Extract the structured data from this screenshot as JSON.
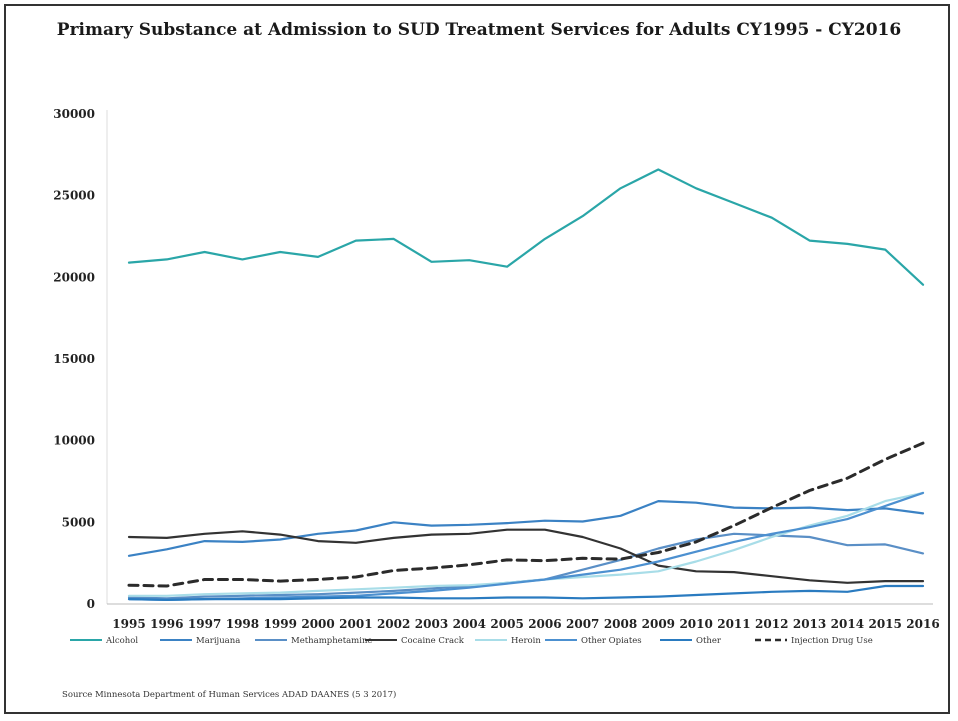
{
  "chart_data": {
    "type": "line",
    "title": "Primary Substance at Admission to SUD Treatment Services for Adults CY1995 - CY2016",
    "x": [
      "1995",
      "1996",
      "1997",
      "1998",
      "1999",
      "2000",
      "2001",
      "2002",
      "2003",
      "2004",
      "2005",
      "2006",
      "2007",
      "2008",
      "2009",
      "2010",
      "2011",
      "2012",
      "2013",
      "2014",
      "2015",
      "2016"
    ],
    "ylim": [
      0,
      30000
    ],
    "yticks": [
      "0",
      "5000",
      "10000",
      "15000",
      "20000",
      "25000",
      "30000"
    ],
    "grid": false,
    "legend_position": "bottom",
    "series": [
      {
        "name": "Alcohol",
        "color": "#2aa6a8",
        "dash": "solid",
        "values": [
          20900,
          21100,
          21550,
          21100,
          21550,
          21250,
          22250,
          22350,
          20950,
          21050,
          20650,
          22350,
          23750,
          25450,
          26600,
          25450,
          24550,
          23650,
          22250,
          22050,
          21700,
          19550
        ]
      },
      {
        "name": "Marijuana",
        "color": "#3b82c4",
        "dash": "solid",
        "values": [
          2950,
          3350,
          3850,
          3800,
          3950,
          4300,
          4500,
          5000,
          4800,
          4850,
          4950,
          5100,
          5050,
          5400,
          6300,
          6200,
          5900,
          5850,
          5900,
          5750,
          5850,
          5550
        ]
      },
      {
        "name": "Methamphetamine",
        "color": "#5a8fc6",
        "dash": "solid",
        "values": [
          400,
          350,
          450,
          500,
          550,
          600,
          700,
          800,
          950,
          1100,
          1300,
          1500,
          2100,
          2700,
          3400,
          3950,
          4300,
          4200,
          4100,
          3600,
          3650,
          3100
        ]
      },
      {
        "name": "Cocaine Crack",
        "color": "#333333",
        "dash": "solid",
        "values": [
          4100,
          4050,
          4300,
          4450,
          4250,
          3850,
          3750,
          4050,
          4250,
          4300,
          4550,
          4550,
          4100,
          3400,
          2350,
          2000,
          1950,
          1700,
          1450,
          1300,
          1400,
          1400
        ]
      },
      {
        "name": "Heroin",
        "color": "#a8dde8",
        "dash": "solid",
        "values": [
          500,
          500,
          600,
          650,
          700,
          800,
          900,
          1000,
          1100,
          1150,
          1300,
          1500,
          1650,
          1800,
          2000,
          2600,
          3300,
          4100,
          4800,
          5400,
          6300,
          6800
        ]
      },
      {
        "name": "Other Opiates",
        "color": "#4c90d0",
        "dash": "solid",
        "values": [
          300,
          250,
          300,
          350,
          400,
          450,
          500,
          650,
          800,
          1000,
          1250,
          1500,
          1800,
          2100,
          2600,
          3200,
          3800,
          4300,
          4700,
          5200,
          6000,
          6800
        ]
      },
      {
        "name": "Other",
        "color": "#2a7bc0",
        "dash": "solid",
        "values": [
          300,
          250,
          300,
          300,
          300,
          350,
          400,
          400,
          350,
          350,
          400,
          400,
          350,
          400,
          450,
          550,
          650,
          750,
          800,
          750,
          1100,
          1100
        ]
      },
      {
        "name": "Injection Drug Use",
        "color": "#2b2b2b",
        "dash": "dashed",
        "values": [
          1150,
          1100,
          1500,
          1500,
          1400,
          1500,
          1650,
          2050,
          2200,
          2400,
          2700,
          2650,
          2800,
          2750,
          3150,
          3800,
          4800,
          5900,
          6950,
          7700,
          8850,
          9850
        ]
      }
    ]
  },
  "source": "Source  Minnesota Department of Human Services  ADAD  DAANES  (5 3 2017)"
}
